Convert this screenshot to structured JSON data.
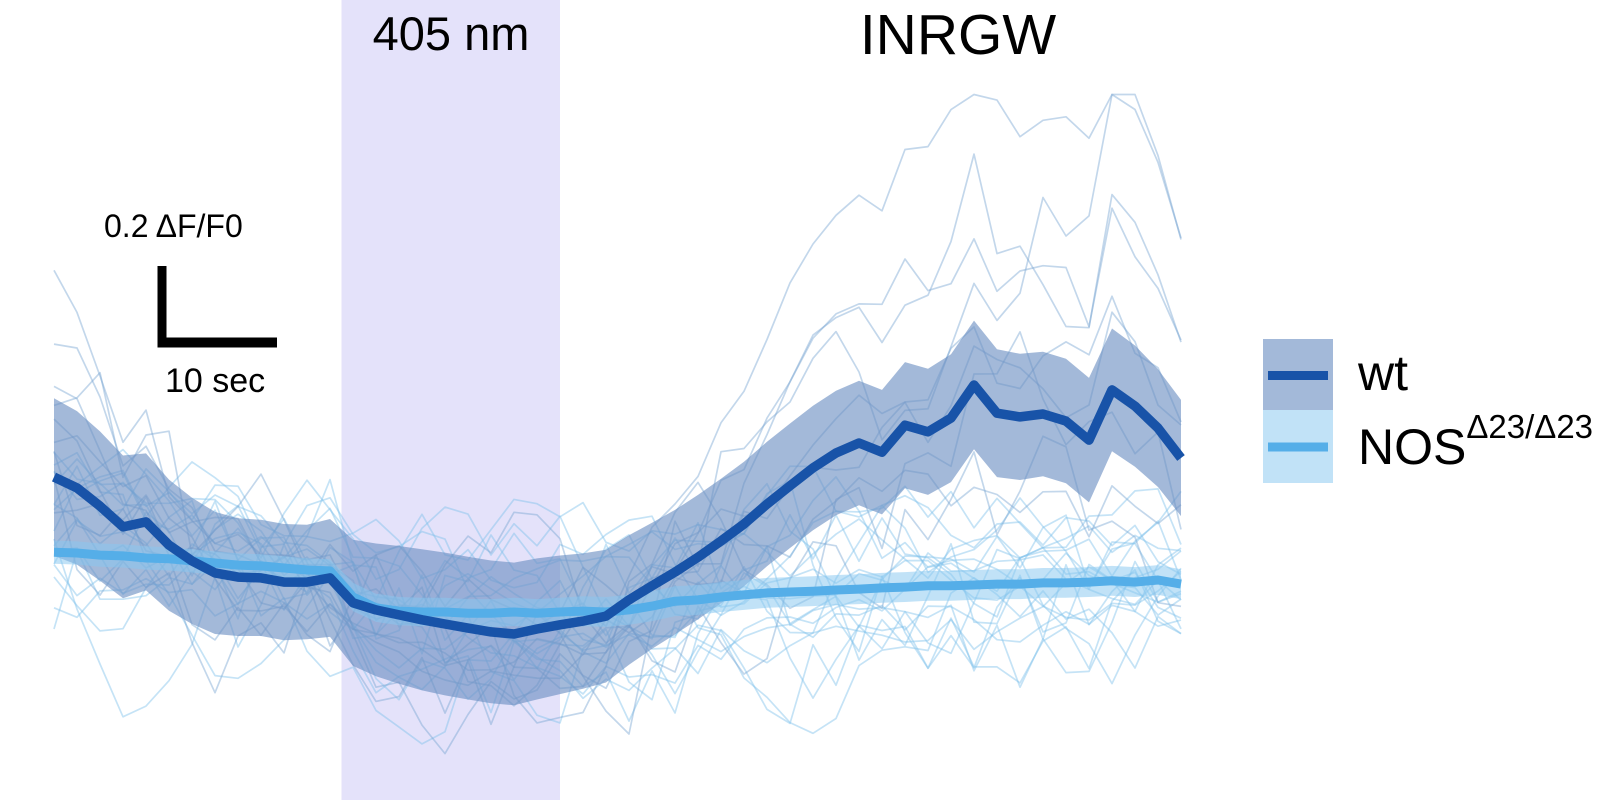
{
  "figure": {
    "title": "INRGW",
    "stim_label": "405 nm",
    "scalebar": {
      "value_label": "0.2 ΔF/F0",
      "time_label": "10 sec"
    },
    "legend": [
      {
        "label": "wt",
        "superscript": ""
      },
      {
        "label": "NOS",
        "superscript": "Δ23/Δ23"
      }
    ]
  },
  "chart_data": {
    "type": "line",
    "title": "INRGW",
    "xlabel": "time (sec), scale bar = 10 sec",
    "ylabel": "ΔF/F0, scale bar = 0.2",
    "grid": false,
    "legend_position": "right",
    "ylim_hint": [
      -0.45,
      1.2
    ],
    "stim_window": {
      "label": "405 nm",
      "start_sec": 25,
      "end_sec": 44,
      "color": "#e4e2fa"
    },
    "x_seconds": [
      0,
      2,
      4,
      6,
      8,
      10,
      12,
      14,
      16,
      18,
      20,
      22,
      24,
      26,
      28,
      30,
      32,
      34,
      36,
      38,
      40,
      42,
      44,
      46,
      48,
      50,
      52,
      54,
      56,
      58,
      60,
      62,
      64,
      66,
      68,
      70,
      72,
      74,
      76,
      78,
      80,
      82,
      84,
      86,
      88,
      90,
      92,
      94,
      96,
      98
    ],
    "series": [
      {
        "name": "wt",
        "role": "mean_sem",
        "line_color": "#1853a8",
        "band_color": "rgba(106,142,194,0.62)",
        "values": [
          0.248,
          0.222,
          0.178,
          0.128,
          0.14,
          0.084,
          0.046,
          0.017,
          0.007,
          0.005,
          -0.005,
          -0.005,
          0.005,
          -0.055,
          -0.072,
          -0.084,
          -0.096,
          -0.106,
          -0.116,
          -0.125,
          -0.13,
          -0.118,
          -0.108,
          -0.099,
          -0.087,
          -0.048,
          -0.014,
          0.019,
          0.055,
          0.094,
          0.135,
          0.183,
          0.227,
          0.27,
          0.306,
          0.33,
          0.308,
          0.373,
          0.357,
          0.39,
          0.47,
          0.402,
          0.393,
          0.4,
          0.383,
          0.337,
          0.458,
          0.419,
          0.366,
          0.294
        ],
        "sem": [
          0.19,
          0.185,
          0.18,
          0.172,
          0.165,
          0.158,
          0.152,
          0.147,
          0.142,
          0.14,
          0.14,
          0.138,
          0.142,
          0.152,
          0.16,
          0.166,
          0.17,
          0.172,
          0.172,
          0.172,
          0.172,
          0.17,
          0.167,
          0.163,
          0.16,
          0.156,
          0.152,
          0.15,
          0.15,
          0.15,
          0.15,
          0.15,
          0.15,
          0.15,
          0.15,
          0.15,
          0.15,
          0.152,
          0.152,
          0.154,
          0.155,
          0.154,
          0.152,
          0.15,
          0.15,
          0.15,
          0.148,
          0.146,
          0.142,
          0.14
        ]
      },
      {
        "name": "NOSΔ23/Δ23",
        "role": "mean_sem",
        "line_color": "#55aee8",
        "band_color": "rgba(136,200,240,0.52)",
        "values": [
          0.067,
          0.065,
          0.06,
          0.058,
          0.053,
          0.051,
          0.046,
          0.041,
          0.036,
          0.034,
          0.029,
          0.024,
          0.022,
          -0.041,
          -0.067,
          -0.075,
          -0.077,
          -0.077,
          -0.08,
          -0.08,
          -0.077,
          -0.08,
          -0.077,
          -0.075,
          -0.077,
          -0.072,
          -0.063,
          -0.051,
          -0.048,
          -0.041,
          -0.036,
          -0.031,
          -0.029,
          -0.027,
          -0.024,
          -0.022,
          -0.019,
          -0.017,
          -0.014,
          -0.014,
          -0.012,
          -0.01,
          -0.01,
          -0.007,
          -0.007,
          -0.005,
          -0.002,
          -0.005,
          0.0,
          -0.01
        ],
        "sem": [
          0.028,
          0.028,
          0.028,
          0.028,
          0.028,
          0.028,
          0.028,
          0.028,
          0.028,
          0.028,
          0.028,
          0.028,
          0.028,
          0.034,
          0.034,
          0.034,
          0.034,
          0.034,
          0.034,
          0.034,
          0.034,
          0.034,
          0.034,
          0.036,
          0.036,
          0.036,
          0.036,
          0.036,
          0.036,
          0.036,
          0.036,
          0.036,
          0.036,
          0.036,
          0.036,
          0.036,
          0.036,
          0.036,
          0.036,
          0.036,
          0.036,
          0.036,
          0.036,
          0.036,
          0.036,
          0.036,
          0.036,
          0.036,
          0.036,
          0.036
        ]
      }
    ],
    "individual_traces": {
      "wt": {
        "count": 9,
        "seed": 5,
        "base_series": 0,
        "gain_min": 0.3,
        "gain_max": 2.55,
        "offset_spread": 0.16,
        "noise": 0.21,
        "start_frac": 0.5,
        "start_scale": 1.0,
        "color": "#7ba6d2",
        "opacity": 0.45
      },
      "nos": {
        "count": 18,
        "seed": 42,
        "base_series": 1,
        "gain_min": 0.3,
        "gain_max": 1.6,
        "offset_spread": 0.2,
        "noise": 0.2,
        "start_frac": 0.55,
        "start_scale": 1.7,
        "color": "#7fc0ec",
        "opacity": 0.45
      }
    }
  }
}
